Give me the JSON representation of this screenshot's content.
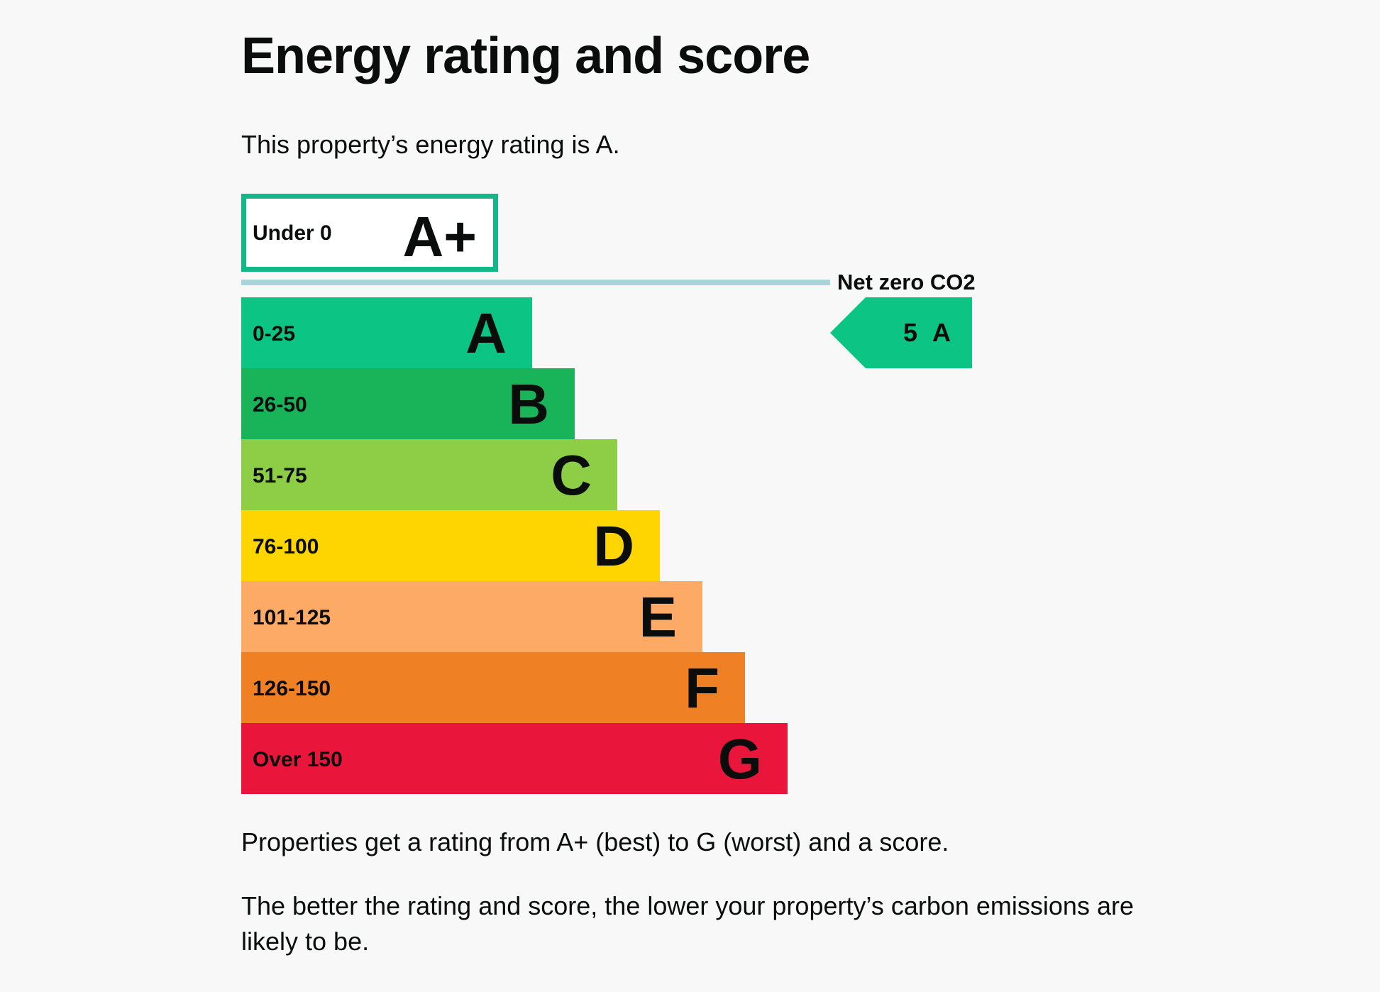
{
  "page": {
    "heading": "Energy rating and score",
    "intro": "This property’s energy rating is A.",
    "footer_text_1": "Properties get a rating from A+ (best) to G (worst) and a score.",
    "footer_text_2": "The better the rating and score, the lower your property’s carbon emissions are likely to be."
  },
  "chart_data": {
    "type": "bar",
    "title": "Energy rating and score",
    "categories": [
      "A+",
      "A",
      "B",
      "C",
      "D",
      "E",
      "F",
      "G"
    ],
    "bands": [
      {
        "letter": "A+",
        "range": "Under 0",
        "color": "#ffffff",
        "outline": "#13b788"
      },
      {
        "letter": "A",
        "range": "0-25",
        "color": "#0cc483"
      },
      {
        "letter": "B",
        "range": "26-50",
        "color": "#19b459"
      },
      {
        "letter": "C",
        "range": "51-75",
        "color": "#8dce46"
      },
      {
        "letter": "D",
        "range": "76-100",
        "color": "#ffd500"
      },
      {
        "letter": "E",
        "range": "101-125",
        "color": "#fcaa65"
      },
      {
        "letter": "F",
        "range": "126-150",
        "color": "#ef8023"
      },
      {
        "letter": "G",
        "range": "Over 150",
        "color": "#e9153b"
      }
    ],
    "net_zero_label": "Net zero CO2",
    "net_zero_line_color": "#a8d5dc",
    "current_rating": {
      "score": "5",
      "letter": "A",
      "band": "A",
      "color": "#0cc483"
    }
  }
}
